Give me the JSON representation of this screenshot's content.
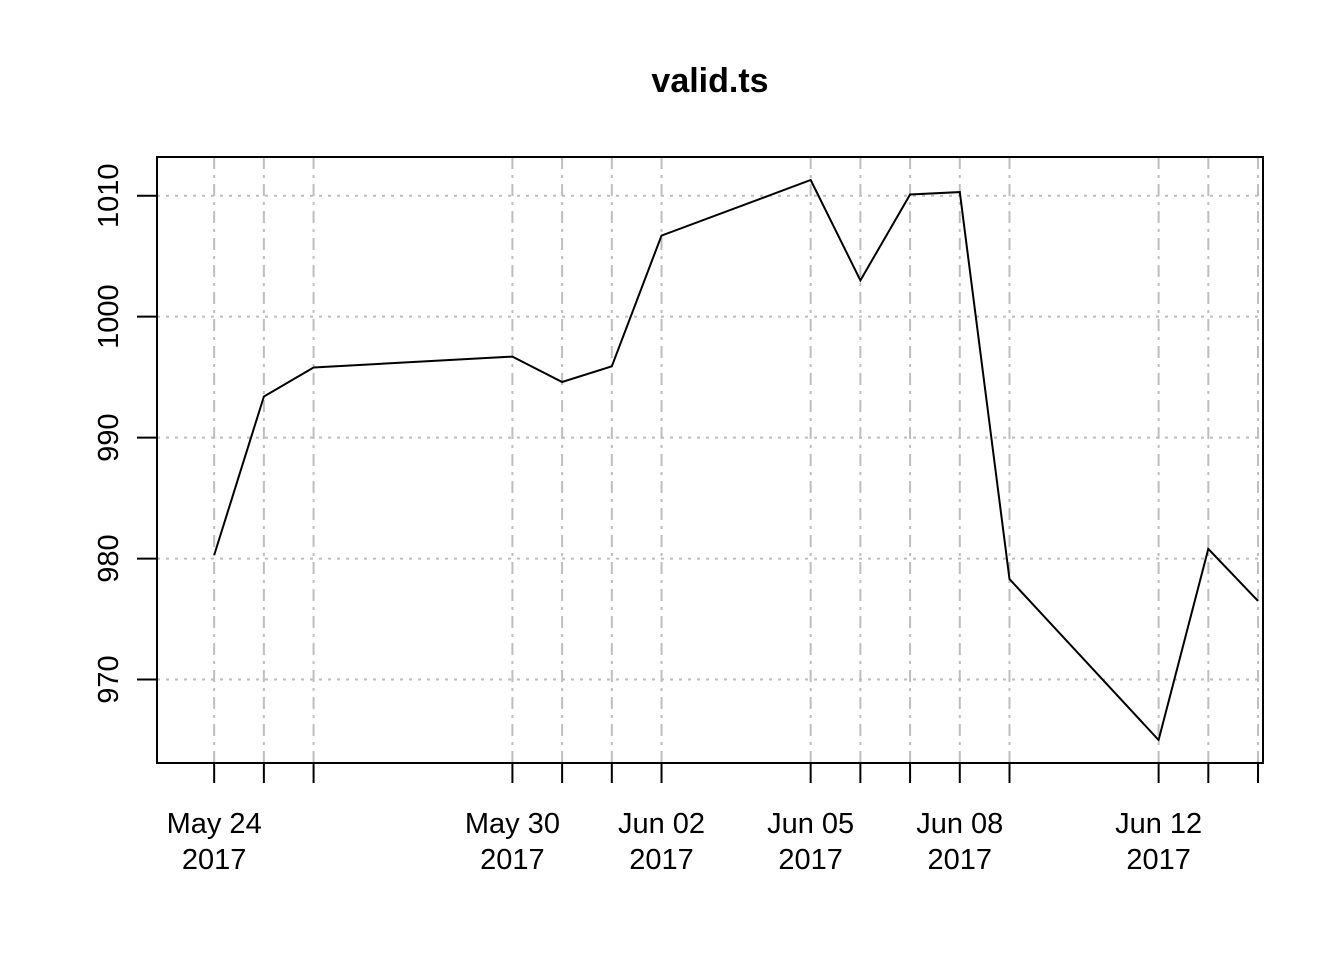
{
  "chart_data": {
    "type": "line",
    "title": "valid.ts",
    "xlabel": "",
    "ylabel": "",
    "x": [
      "2017-05-24",
      "2017-05-25",
      "2017-05-26",
      "2017-05-30",
      "2017-05-31",
      "2017-06-01",
      "2017-06-02",
      "2017-06-05",
      "2017-06-06",
      "2017-06-07",
      "2017-06-08",
      "2017-06-09",
      "2017-06-12",
      "2017-06-13",
      "2017-06-14"
    ],
    "series": [
      {
        "values": [
          980.3,
          993.4,
          995.8,
          996.7,
          994.6,
          995.9,
          1006.7,
          1011.3,
          1003.0,
          1010.1,
          1010.3,
          978.3,
          965.0,
          980.8,
          976.5
        ]
      }
    ],
    "xticks": [
      {
        "date": "2017-05-24",
        "label": [
          "May 24",
          "2017"
        ]
      },
      {
        "date": "2017-05-25",
        "label": null
      },
      {
        "date": "2017-05-26",
        "label": null
      },
      {
        "date": "2017-05-30",
        "label": [
          "May 30",
          "2017"
        ]
      },
      {
        "date": "2017-05-31",
        "label": null
      },
      {
        "date": "2017-06-01",
        "label": null
      },
      {
        "date": "2017-06-02",
        "label": [
          "Jun 02",
          "2017"
        ]
      },
      {
        "date": "2017-06-05",
        "label": [
          "Jun 05",
          "2017"
        ]
      },
      {
        "date": "2017-06-06",
        "label": null
      },
      {
        "date": "2017-06-07",
        "label": null
      },
      {
        "date": "2017-06-08",
        "label": [
          "Jun 08",
          "2017"
        ]
      },
      {
        "date": "2017-06-09",
        "label": null
      },
      {
        "date": "2017-06-12",
        "label": [
          "Jun 12",
          "2017"
        ]
      },
      {
        "date": "2017-06-13",
        "label": null
      },
      {
        "date": "2017-06-14",
        "label": null
      }
    ],
    "yticks": [
      970,
      980,
      990,
      1000,
      1010
    ],
    "ylim": [
      963.1,
      1013.2
    ],
    "xlim": [
      "2017-05-23",
      "2017-06-14"
    ],
    "grid": true,
    "colors": {
      "line": "#000000",
      "grid": "#bebebe",
      "axis": "#000000"
    }
  }
}
